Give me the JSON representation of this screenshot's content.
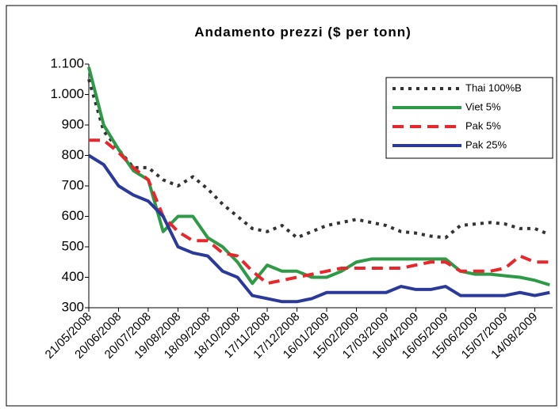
{
  "chart_data": {
    "type": "line",
    "title": "Andamento prezzi ($ per tonn)",
    "categories": [
      "21/05/2008",
      null,
      "20/06/2008",
      null,
      "20/07/2008",
      null,
      "19/08/2008",
      null,
      "18/09/2008",
      null,
      "18/10/2008",
      null,
      "17/11/2008",
      null,
      "17/12/2008",
      null,
      "16/01/2009",
      null,
      "15/02/2009",
      null,
      "17/03/2009",
      null,
      "16/04/2009",
      null,
      "16/05/2009",
      null,
      "15/06/2009",
      null,
      "15/07/2009",
      null,
      "14/08/2009",
      null
    ],
    "series": [
      {
        "name": "Thai 100%B",
        "color": "#333333",
        "dash": "dot",
        "values": [
          1050,
          880,
          820,
          760,
          760,
          720,
          700,
          730,
          690,
          640,
          600,
          560,
          550,
          570,
          530,
          550,
          570,
          580,
          590,
          580,
          570,
          550,
          545,
          535,
          530,
          570,
          575,
          580,
          575,
          560,
          560,
          540
        ]
      },
      {
        "name": "Viet 5%",
        "color": "#2e9a47",
        "dash": "solid",
        "values": [
          1090,
          900,
          820,
          750,
          720,
          550,
          600,
          600,
          530,
          500,
          450,
          380,
          440,
          420,
          420,
          400,
          400,
          420,
          450,
          460,
          460,
          460,
          460,
          460,
          460,
          420,
          410,
          410,
          405,
          400,
          390,
          375
        ]
      },
      {
        "name": "Pak 5%",
        "color": "#e8262c",
        "dash": "dash",
        "values": [
          850,
          850,
          810,
          760,
          720,
          600,
          550,
          520,
          520,
          480,
          470,
          420,
          380,
          390,
          400,
          410,
          420,
          430,
          430,
          430,
          430,
          430,
          440,
          450,
          450,
          420,
          420,
          420,
          430,
          470,
          450,
          450
        ]
      },
      {
        "name": "Pak 25%",
        "color": "#2b3a9a",
        "dash": "solid",
        "values": [
          800,
          770,
          700,
          670,
          650,
          600,
          500,
          480,
          470,
          420,
          400,
          340,
          330,
          320,
          320,
          330,
          350,
          350,
          350,
          350,
          350,
          370,
          360,
          360,
          370,
          340,
          340,
          340,
          340,
          350,
          340,
          350
        ]
      }
    ],
    "ylim": [
      300,
      1100
    ],
    "yticks": [
      300,
      400,
      500,
      600,
      700,
      800,
      900,
      {
        "value": 1000,
        "label": "1.000"
      },
      {
        "value": 1100,
        "label": "1.100"
      }
    ],
    "grid": false,
    "legend": "upper right"
  }
}
